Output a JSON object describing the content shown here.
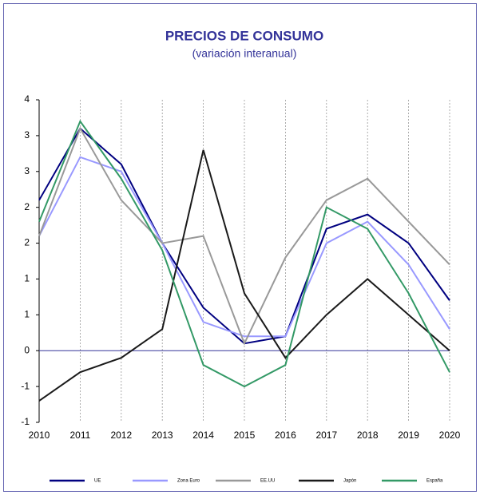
{
  "chart_data": {
    "type": "line",
    "title": "PRECIOS DE CONSUMO",
    "subtitle": "(variación interanual)",
    "categories": [
      "2010",
      "2011",
      "2012",
      "2013",
      "2014",
      "2015",
      "2016",
      "2017",
      "2018",
      "2019",
      "2020"
    ],
    "ylim": [
      -1,
      3.5
    ],
    "yticks": [
      {
        "value": -1,
        "label": "-1"
      },
      {
        "value": -0.5,
        "label": "-1"
      },
      0,
      {
        "value": 0.5,
        "label": "1"
      },
      1,
      {
        "value": 1.5,
        "label": "2"
      },
      2,
      {
        "value": 2.5,
        "label": "3"
      },
      3,
      {
        "value": 3.5,
        "label": "4"
      }
    ],
    "grid": true,
    "legend": "bottom",
    "series": [
      {
        "name": "UE",
        "color": "#000080",
        "values": [
          2.1,
          3.1,
          2.6,
          1.5,
          0.6,
          0.1,
          0.2,
          1.7,
          1.9,
          1.5,
          0.7
        ]
      },
      {
        "name": "Zona Euro",
        "color": "#9999ff",
        "values": [
          1.6,
          2.7,
          2.5,
          1.5,
          0.4,
          0.2,
          0.2,
          1.5,
          1.8,
          1.2,
          0.3
        ]
      },
      {
        "name": "EE.UU",
        "color": "#999999",
        "values": [
          1.6,
          3.1,
          2.1,
          1.5,
          1.6,
          0.1,
          1.3,
          2.1,
          2.4,
          1.8,
          1.2
        ]
      },
      {
        "name": "Japón",
        "color": "#1a1a1a",
        "values": [
          -0.7,
          -0.3,
          -0.1,
          0.3,
          2.8,
          0.8,
          -0.1,
          0.5,
          1.0,
          0.5,
          0
        ]
      },
      {
        "name": "España",
        "color": "#339966",
        "values": [
          1.8,
          3.2,
          2.4,
          1.4,
          -0.2,
          -0.5,
          -0.2,
          2.0,
          1.7,
          0.8,
          -0.3
        ]
      }
    ]
  }
}
